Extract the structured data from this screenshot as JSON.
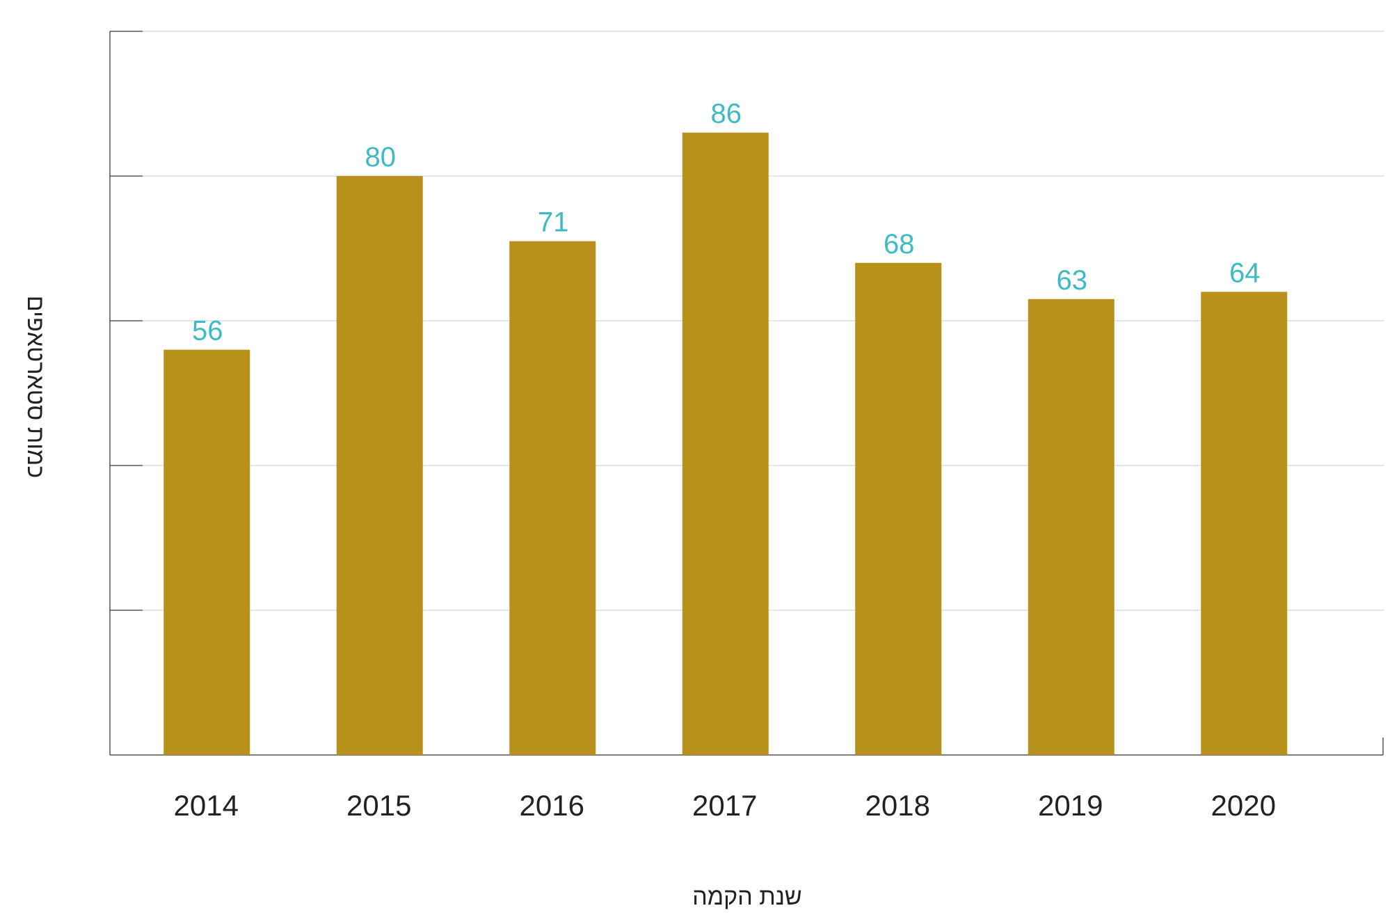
{
  "chart_data": {
    "type": "bar",
    "title": "",
    "xlabel": "שנת הקמה",
    "ylabel": "כמות סטארטאפים",
    "categories": [
      "2014",
      "2015",
      "2016",
      "2017",
      "2018",
      "2019",
      "2020"
    ],
    "values": [
      56,
      80,
      71,
      86,
      68,
      63,
      64
    ],
    "ylim": [
      0,
      100
    ],
    "y_gridlines": [
      20,
      40,
      60,
      80,
      100
    ],
    "grid": true,
    "data_labels": true,
    "y_tick_labels_shown": false,
    "colors": {
      "bar": "#B7911B",
      "data_label": "#3DBAC4",
      "axis": "#555555",
      "grid": "#DDDDDD",
      "tick_label": "#222222"
    }
  }
}
